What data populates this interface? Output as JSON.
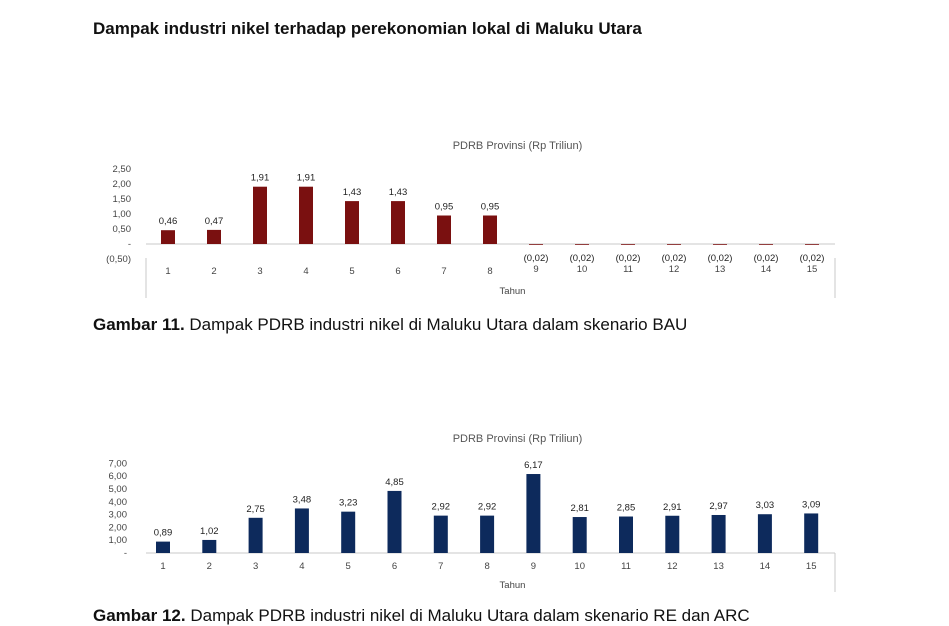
{
  "page": {
    "heading": "Dampak industri nikel terhadap perekonomian lokal  di Maluku Utara",
    "caption1_bold": "Gambar 11.",
    "caption1_text": " Dampak PDRB industri nikel di Maluku Utara dalam skenario BAU",
    "caption2_bold": "Gambar 12.",
    "caption2_text": " Dampak PDRB industri nikel di Maluku Utara dalam skenario RE dan ARC"
  },
  "chart_data": [
    {
      "type": "bar",
      "title": "PDRB Provinsi (Rp Triliun)",
      "xlabel": "Tahun",
      "ylabel": "",
      "categories": [
        "1",
        "2",
        "3",
        "4",
        "5",
        "6",
        "7",
        "8",
        "9",
        "10",
        "11",
        "12",
        "13",
        "14",
        "15"
      ],
      "values": [
        0.46,
        0.47,
        1.91,
        1.91,
        1.43,
        1.43,
        0.95,
        0.95,
        -0.02,
        -0.02,
        -0.02,
        -0.02,
        -0.02,
        -0.02,
        -0.02
      ],
      "data_labels": [
        "0,46",
        "0,47",
        "1,91",
        "1,91",
        "1,43",
        "1,43",
        "0,95",
        "0,95",
        "(0,02)",
        "(0,02)",
        "(0,02)",
        "(0,02)",
        "(0,02)",
        "(0,02)",
        "(0,02)"
      ],
      "yticks": [
        2.5,
        2.0,
        1.5,
        1.0,
        0.5,
        0,
        -0.5
      ],
      "ytick_labels": [
        "2,50",
        "2,00",
        "1,50",
        "1,00",
        "0,50",
        "-",
        "(0,50)"
      ],
      "ylim": [
        -0.5,
        2.5
      ],
      "grid": false,
      "legend": "none",
      "color": "#7a1010"
    },
    {
      "type": "bar",
      "title": "PDRB Provinsi (Rp Triliun)",
      "xlabel": "Tahun",
      "ylabel": "",
      "categories": [
        "1",
        "2",
        "3",
        "4",
        "5",
        "6",
        "7",
        "8",
        "9",
        "10",
        "11",
        "12",
        "13",
        "14",
        "15"
      ],
      "values": [
        0.89,
        1.02,
        2.75,
        3.48,
        3.23,
        4.85,
        2.92,
        2.92,
        6.17,
        2.81,
        2.85,
        2.91,
        2.97,
        3.03,
        3.09
      ],
      "data_labels": [
        "0,89",
        "1,02",
        "2,75",
        "3,48",
        "3,23",
        "4,85",
        "2,92",
        "2,92",
        "6,17",
        "2,81",
        "2,85",
        "2,91",
        "2,97",
        "3,03",
        "3,09"
      ],
      "yticks": [
        7,
        6,
        5,
        4,
        3,
        2,
        1,
        0
      ],
      "ytick_labels": [
        "7,00",
        "6,00",
        "5,00",
        "4,00",
        "3,00",
        "2,00",
        "1,00",
        "-"
      ],
      "ylim": [
        0,
        7
      ],
      "grid": false,
      "legend": "none",
      "color": "#0d2a5c"
    }
  ]
}
